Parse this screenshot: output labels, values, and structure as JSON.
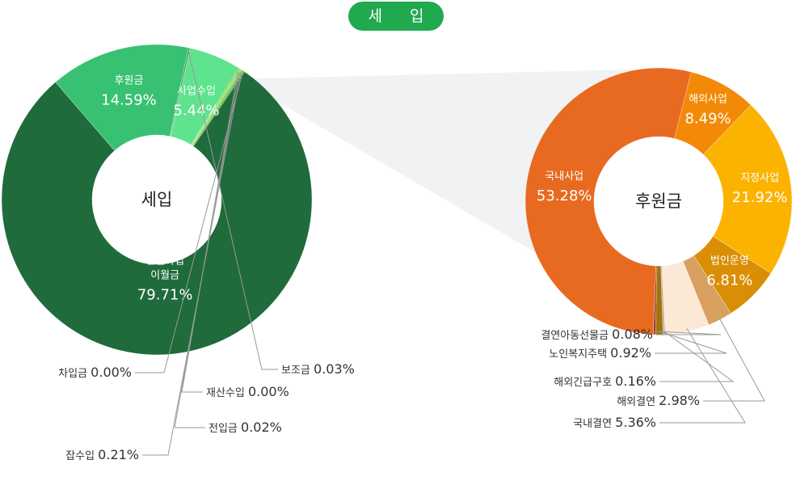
{
  "title": "세 입",
  "chart_data": [
    {
      "type": "pie",
      "center_label": "세입",
      "slices": [
        {
          "name": "전월사업 이월금",
          "value": 79.71,
          "display": "79.71%",
          "color": "#1f6b3b"
        },
        {
          "name": "후원금",
          "value": 14.59,
          "display": "14.59%",
          "color": "#38c172"
        },
        {
          "name": "보조금",
          "value": 0.03,
          "display": "0.03%",
          "color": "#2f8f55"
        },
        {
          "name": "사업수입",
          "value": 5.44,
          "display": "5.44%",
          "color": "#5fe38f"
        },
        {
          "name": "재산수입",
          "value": 0.0,
          "display": "0.00%",
          "color": "#7ad34a"
        },
        {
          "name": "전입금",
          "value": 0.02,
          "display": "0.02%",
          "color": "#9be05a"
        },
        {
          "name": "잡수입",
          "value": 0.21,
          "display": "0.21%",
          "color": "#6fcf3a"
        },
        {
          "name": "차입금",
          "value": 0.0,
          "display": "0.00%",
          "color": "#3fae50"
        }
      ]
    },
    {
      "type": "pie",
      "center_label": "후원금",
      "slices": [
        {
          "name": "해외사업",
          "value": 8.49,
          "display": "8.49%",
          "color": "#f28a07"
        },
        {
          "name": "지정사업",
          "value": 21.92,
          "display": "21.92%",
          "color": "#fbb300"
        },
        {
          "name": "법인운영",
          "value": 6.81,
          "display": "6.81%",
          "color": "#d98e06"
        },
        {
          "name": "해외결연",
          "value": 2.98,
          "display": "2.98%",
          "color": "#d9a060"
        },
        {
          "name": "국내결연",
          "value": 5.36,
          "display": "5.36%",
          "color": "#fbe8d5"
        },
        {
          "name": "해외긴급구호",
          "value": 0.16,
          "display": "0.16%",
          "color": "#c3a98b"
        },
        {
          "name": "노인복지주택",
          "value": 0.92,
          "display": "0.92%",
          "color": "#a0730f"
        },
        {
          "name": "결연아동선물금",
          "value": 0.08,
          "display": "0.08%",
          "color": "#8e2b1b"
        },
        {
          "name": "국내사업",
          "value": 53.28,
          "display": "53.28%",
          "color": "#e86a21"
        }
      ]
    }
  ]
}
